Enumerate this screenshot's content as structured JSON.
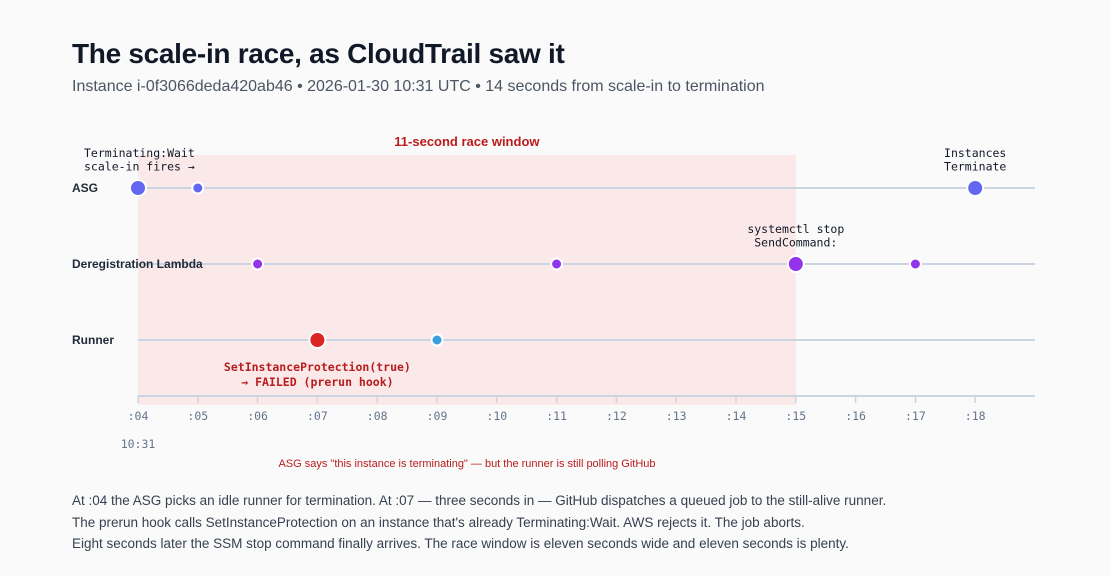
{
  "header": {
    "title": "The scale-in race, as CloudTrail saw it",
    "subtitle": "Instance i-0f3066deda420ab46 • 2026-01-30 10:31 UTC • 14 seconds from scale-in to termination"
  },
  "chart_data": {
    "type": "timeline",
    "x_unit": "seconds past 10:31",
    "xlim": [
      4,
      19
    ],
    "ticks": [
      ":04",
      ":05",
      ":06",
      ":07",
      ":08",
      ":09",
      ":10",
      ":11",
      ":12",
      ":13",
      ":14",
      ":15",
      ":16",
      ":17",
      ":18"
    ],
    "tick_values": [
      4,
      5,
      6,
      7,
      8,
      9,
      10,
      11,
      12,
      13,
      14,
      15,
      16,
      17,
      18
    ],
    "minute_label": "10:31",
    "lanes": [
      "ASG",
      "Deregistration Lambda",
      "Runner"
    ],
    "race_window": {
      "start": 4,
      "end": 15,
      "label": "11-second race window",
      "color": "#fbe9e9"
    },
    "events": [
      {
        "lane": 0,
        "t": 4,
        "major": true,
        "color": "#6366f1"
      },
      {
        "lane": 0,
        "t": 5,
        "major": false,
        "color": "#6366f1"
      },
      {
        "lane": 0,
        "t": 18,
        "major": true,
        "color": "#6366f1"
      },
      {
        "lane": 1,
        "t": 6,
        "major": false,
        "color": "#9333ea"
      },
      {
        "lane": 1,
        "t": 11,
        "major": false,
        "color": "#9333ea"
      },
      {
        "lane": 1,
        "t": 15,
        "major": true,
        "color": "#9333ea"
      },
      {
        "lane": 1,
        "t": 17,
        "major": false,
        "color": "#9333ea"
      },
      {
        "lane": 2,
        "t": 7,
        "major": true,
        "color": "#dc2626"
      },
      {
        "lane": 2,
        "t": 9,
        "major": false,
        "color": "#3b9ee0"
      }
    ],
    "annotations": [
      {
        "lines": [
          "Terminating:Wait",
          "scale-in fires →"
        ],
        "t": 4,
        "lane": 0,
        "pos": "above-right",
        "tone": "normal"
      },
      {
        "lines": [
          "Instances",
          "Terminate"
        ],
        "t": 18,
        "lane": 0,
        "pos": "above",
        "tone": "normal"
      },
      {
        "lines": [
          "systemctl stop",
          "SendCommand:"
        ],
        "t": 15,
        "lane": 1,
        "pos": "above",
        "tone": "normal"
      },
      {
        "lines": [
          "SetInstanceProtection(true)",
          "→ FAILED (prerun hook)"
        ],
        "t": 7,
        "lane": 2,
        "pos": "below",
        "tone": "error"
      }
    ],
    "caption": "ASG says \"this instance is terminating\" — but the runner is still polling GitHub"
  },
  "body": [
    "At :04 the ASG picks an idle runner for termination. At :07 — three seconds in — GitHub dispatches a queued job to the still-alive runner.",
    "The prerun hook calls SetInstanceProtection on an instance that's already Terminating:Wait. AWS rejects it. The job aborts.",
    "Eight seconds later the SSM stop command finally arrives. The race window is eleven seconds wide and eleven seconds is plenty."
  ]
}
